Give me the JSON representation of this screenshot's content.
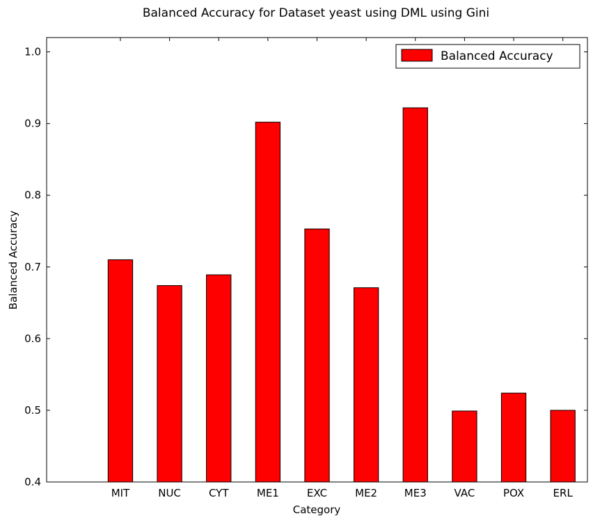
{
  "chart_data": {
    "type": "bar",
    "title": "Balanced Accuracy for Dataset yeast using DML using Gini",
    "xlabel": "Category",
    "ylabel": "Balanced Accuracy",
    "categories": [
      "MIT",
      "NUC",
      "CYT",
      "ME1",
      "EXC",
      "ME2",
      "ME3",
      "VAC",
      "POX",
      "ERL"
    ],
    "series": [
      {
        "name": "Balanced Accuracy",
        "color": "#ff0000",
        "values": [
          0.71,
          0.674,
          0.689,
          0.902,
          0.753,
          0.671,
          0.922,
          0.499,
          0.524,
          0.5
        ]
      }
    ],
    "ylim": [
      0.4,
      1.02
    ],
    "yticks": [
      "0.4",
      "0.5",
      "0.6",
      "0.7",
      "0.8",
      "0.9",
      "1.0"
    ],
    "grid": false,
    "legend": "top-right"
  }
}
